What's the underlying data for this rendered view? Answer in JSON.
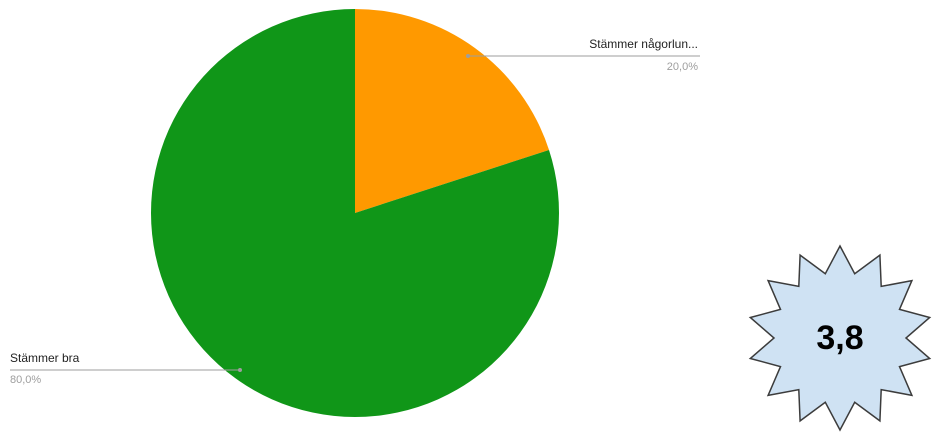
{
  "chart_data": {
    "type": "pie",
    "slices": [
      {
        "label": "Stämmer någorlun...",
        "value": 20.0,
        "value_label": "20,0%",
        "color": "#ff9900"
      },
      {
        "label": "Stämmer bra",
        "value": 80.0,
        "value_label": "80,0%",
        "color": "#109618"
      }
    ],
    "start_angle_deg": 0,
    "direction": "clockwise",
    "legend": "none"
  },
  "badge": {
    "value": "3,8",
    "fill": "#cfe2f3",
    "stroke": "#3c3c3c"
  }
}
